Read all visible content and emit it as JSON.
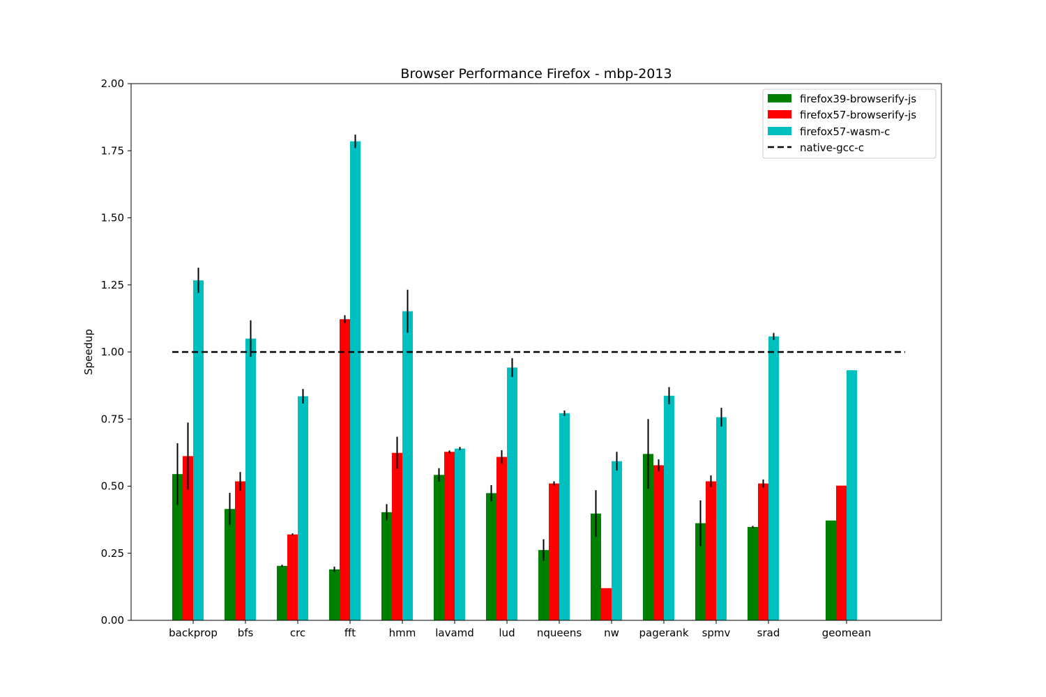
{
  "chart_data": {
    "type": "bar",
    "title": "Browser Performance Firefox - mbp-2013",
    "xlabel": "",
    "ylabel": "Speedup",
    "ylim": [
      0,
      2.0
    ],
    "yticks": [
      "0.00",
      "0.25",
      "0.50",
      "0.75",
      "1.00",
      "1.25",
      "1.50",
      "1.75",
      "2.00"
    ],
    "categories": [
      "backprop",
      "bfs",
      "crc",
      "fft",
      "hmm",
      "lavamd",
      "lud",
      "nqueens",
      "nw",
      "pagerank",
      "spmv",
      "srad",
      "geomean"
    ],
    "series": [
      {
        "name": "firefox39-browserify-js",
        "color": "#008000",
        "values": [
          0.545,
          0.415,
          0.203,
          0.19,
          0.403,
          0.542,
          0.474,
          0.262,
          0.398,
          0.62,
          0.362,
          0.348,
          0.372
        ],
        "errors": [
          0.115,
          0.06,
          0.004,
          0.01,
          0.03,
          0.025,
          0.03,
          0.04,
          0.087,
          0.13,
          0.085,
          0.004,
          null
        ]
      },
      {
        "name": "firefox57-browserify-js",
        "color": "#ff0000",
        "values": [
          0.612,
          0.518,
          0.32,
          1.122,
          0.624,
          0.628,
          0.609,
          0.51,
          0.12,
          0.578,
          0.518,
          0.51,
          0.502
        ],
        "errors": [
          0.125,
          0.035,
          0.004,
          0.015,
          0.06,
          0.005,
          0.025,
          0.008,
          null,
          0.022,
          0.022,
          0.015,
          null
        ]
      },
      {
        "name": "firefox57-wasm-c",
        "color": "#00bfbf",
        "values": [
          1.267,
          1.05,
          0.835,
          1.785,
          1.152,
          0.64,
          0.942,
          0.772,
          0.593,
          0.837,
          0.757,
          1.058,
          0.932
        ],
        "errors": [
          0.047,
          0.068,
          0.027,
          0.025,
          0.08,
          0.006,
          0.035,
          0.01,
          0.035,
          0.032,
          0.035,
          0.013,
          null
        ]
      }
    ],
    "reference_line": {
      "name": "native-gcc-c",
      "value": 1.0,
      "style": "dashed",
      "color": "#000000"
    },
    "legend": {
      "placement": "top-right"
    },
    "grid": false
  }
}
